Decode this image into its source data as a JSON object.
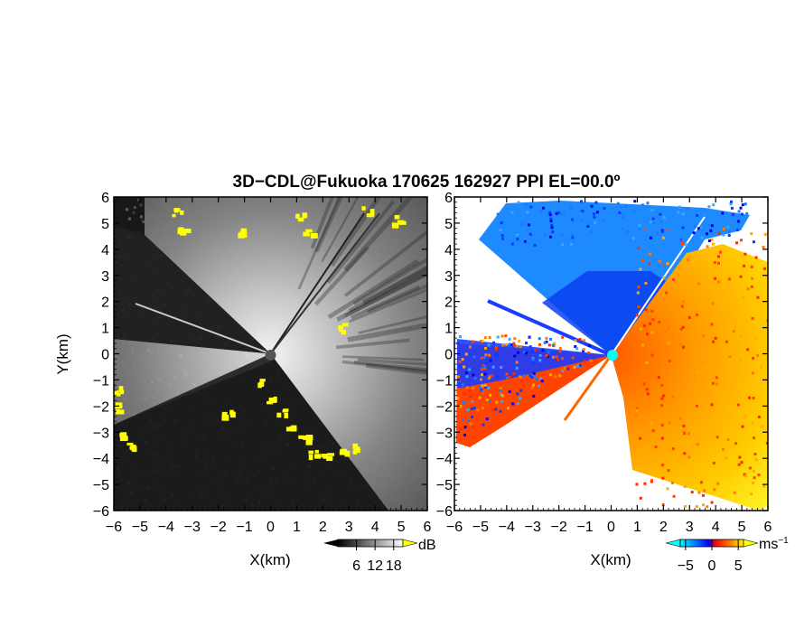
{
  "title": "3D−CDL@Fukuoka 170625 162927 PPI EL=00.0º",
  "chart_data": [
    {
      "type": "heatmap",
      "panel": "left",
      "quantity": "SNR",
      "xlabel": "X(km)",
      "ylabel": "Y(km)",
      "xlim": [
        -6,
        6
      ],
      "ylim": [
        -6,
        6
      ],
      "xticks": [
        "−6",
        "−5",
        "−4",
        "−3",
        "−2",
        "−1",
        "0",
        "1",
        "2",
        "3",
        "4",
        "5",
        "6"
      ],
      "yticks": [
        "6",
        "5",
        "4",
        "3",
        "2",
        "1",
        "0",
        "−1",
        "−2",
        "−3",
        "−4",
        "−5",
        "−6"
      ],
      "colorbar": {
        "unit": "dB",
        "ticks": [
          "6",
          "12",
          "18"
        ],
        "range": [
          0,
          21
        ],
        "colors": [
          "#000000",
          "#ffffff"
        ],
        "over_color": "#ffff00"
      },
      "radar_center": [
        0,
        0
      ]
    },
    {
      "type": "heatmap",
      "panel": "right",
      "quantity": "Doppler velocity",
      "xlabel": "X(km)",
      "xlim": [
        -6,
        6
      ],
      "ylim": [
        -6,
        6
      ],
      "xticks": [
        "−6",
        "−5",
        "−4",
        "−3",
        "−2",
        "−1",
        "0",
        "1",
        "2",
        "3",
        "4",
        "5",
        "6"
      ],
      "yticks": [
        "6",
        "5",
        "4",
        "3",
        "2",
        "1",
        "0",
        "−1",
        "−2",
        "−3",
        "−4",
        "−5",
        "−6"
      ],
      "colorbar": {
        "unit": "ms",
        "unit_exp": "−1",
        "ticks": [
          "−5",
          "0",
          "5"
        ],
        "range": [
          -6,
          6
        ],
        "colors": [
          "#00ffff",
          "#0070ff",
          "#0000ff",
          "#ff0000",
          "#ff8000",
          "#ffff00"
        ]
      },
      "radar_center": [
        0,
        0
      ]
    }
  ]
}
